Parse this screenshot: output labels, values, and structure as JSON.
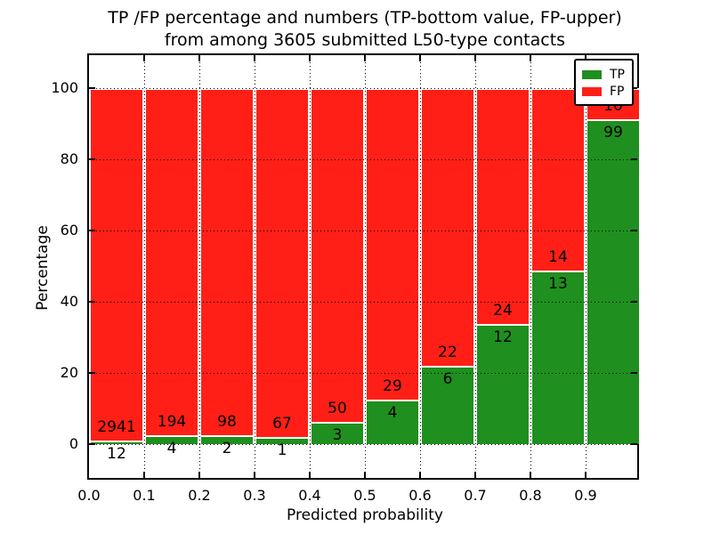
{
  "title": {
    "line1": "TP /FP percentage and numbers (TP-bottom value, FP-upper)",
    "line2": "from among 3605 submitted L50-type contacts"
  },
  "axes": {
    "xlabel": "Predicted probability",
    "ylabel": "Percentage",
    "x_tick_labels": [
      "0.0",
      "0.1",
      "0.2",
      "0.3",
      "0.4",
      "0.5",
      "0.6",
      "0.7",
      "0.8",
      "0.9"
    ],
    "y_tick_labels": [
      "0",
      "20",
      "40",
      "60",
      "80",
      "100"
    ],
    "y_tick_values": [
      0,
      20,
      40,
      60,
      80,
      100
    ],
    "xlim": [
      0.0,
      1.0
    ],
    "ylim": [
      -10.5,
      109.25
    ],
    "grid": "dotted black, both axes"
  },
  "legend": {
    "position": "upper right",
    "entries": [
      {
        "label": "TP",
        "color": "#1f8f1f"
      },
      {
        "label": "FP",
        "color": "#ff1f17"
      }
    ]
  },
  "chart_data": {
    "type": "bar",
    "stacked": true,
    "normalized": "each bar stacks to 100%",
    "title": "TP /FP percentage and numbers (TP-bottom value, FP-upper) from among 3605 submitted L50-type contacts",
    "xlabel": "Predicted probability",
    "ylabel": "Percentage",
    "total_contacts": 3605,
    "bin_width": 0.1,
    "categories": [
      "0.0-0.1",
      "0.1-0.2",
      "0.2-0.3",
      "0.3-0.4",
      "0.4-0.5",
      "0.5-0.6",
      "0.6-0.7",
      "0.7-0.8",
      "0.8-0.9",
      "0.9-1.0"
    ],
    "series": [
      {
        "name": "TP",
        "color": "#1f8f1f",
        "counts": [
          12,
          4,
          2,
          1,
          3,
          4,
          6,
          12,
          13,
          99
        ]
      },
      {
        "name": "FP",
        "color": "#ff1f17",
        "counts": [
          2941,
          194,
          98,
          67,
          50,
          29,
          22,
          24,
          14,
          10
        ]
      }
    ],
    "tp_percent": [
      0.41,
      2.02,
      2.0,
      1.47,
      5.66,
      12.12,
      21.43,
      33.33,
      48.15,
      90.83
    ],
    "fp_percent": [
      99.59,
      97.98,
      98.0,
      98.53,
      94.34,
      87.88,
      78.57,
      66.67,
      51.85,
      9.17
    ]
  }
}
